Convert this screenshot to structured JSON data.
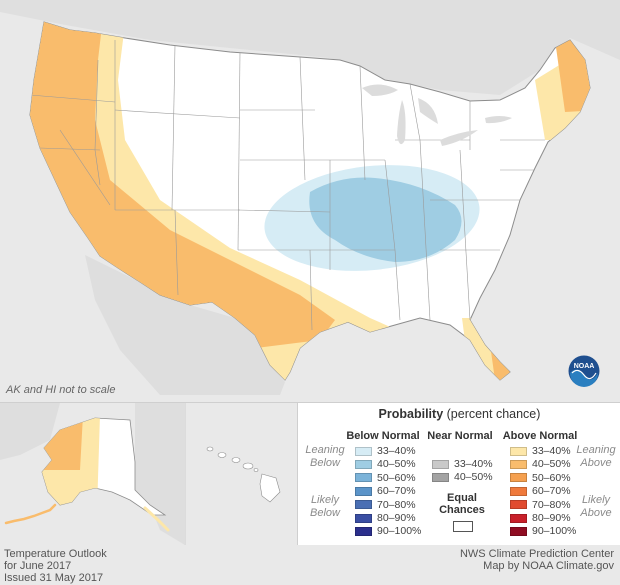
{
  "map": {
    "note": "AK and HI not to scale",
    "colors": {
      "background": "#e9e9e9",
      "land": "#ffffff",
      "above_33_40": "#fde7a9",
      "above_40_50": "#f9bc6c",
      "below_33_40": "#d6ecf5",
      "below_40_50": "#9fcde3"
    }
  },
  "legend": {
    "title_bold": "Probability",
    "title_rest": "(percent chance)",
    "below_normal": {
      "heading": "Below Normal",
      "leaning": "Leaning Below",
      "likely": "Likely Below",
      "bins": [
        {
          "label": "33–40%",
          "color": "#d6ecf5"
        },
        {
          "label": "40–50%",
          "color": "#9fcde3"
        },
        {
          "label": "50–60%",
          "color": "#7bb3d9"
        },
        {
          "label": "60–70%",
          "color": "#5b94c9"
        },
        {
          "label": "70–80%",
          "color": "#4a6fb4"
        },
        {
          "label": "80–90%",
          "color": "#3a4ea3"
        },
        {
          "label": "90–100%",
          "color": "#2b2f8c"
        }
      ]
    },
    "near_normal": {
      "heading": "Near Normal",
      "bins": [
        {
          "label": "33–40%",
          "color": "#c9c9c9"
        },
        {
          "label": "40–50%",
          "color": "#a3a3a3"
        }
      ]
    },
    "equal_chances": {
      "heading": "Equal Chances",
      "color": "#ffffff"
    },
    "above_normal": {
      "heading": "Above Normal",
      "leaning": "Leaning Above",
      "likely": "Likely Above",
      "bins": [
        {
          "label": "33–40%",
          "color": "#fde7a9"
        },
        {
          "label": "40–50%",
          "color": "#f9bc6c"
        },
        {
          "label": "50–60%",
          "color": "#f5a04f"
        },
        {
          "label": "60–70%",
          "color": "#ef7a3c"
        },
        {
          "label": "70–80%",
          "color": "#e04a2e"
        },
        {
          "label": "80–90%",
          "color": "#c8202a"
        },
        {
          "label": "90–100%",
          "color": "#8f0c22"
        }
      ]
    }
  },
  "footer": {
    "left": [
      "Temperature Outlook",
      "for June 2017",
      "Issued 31 May 2017"
    ],
    "right": [
      "NWS Climate Prediction Center",
      "Map by NOAA Climate.gov"
    ]
  },
  "logo": {
    "icon": "noaa-logo-icon",
    "text": "NOAA"
  }
}
